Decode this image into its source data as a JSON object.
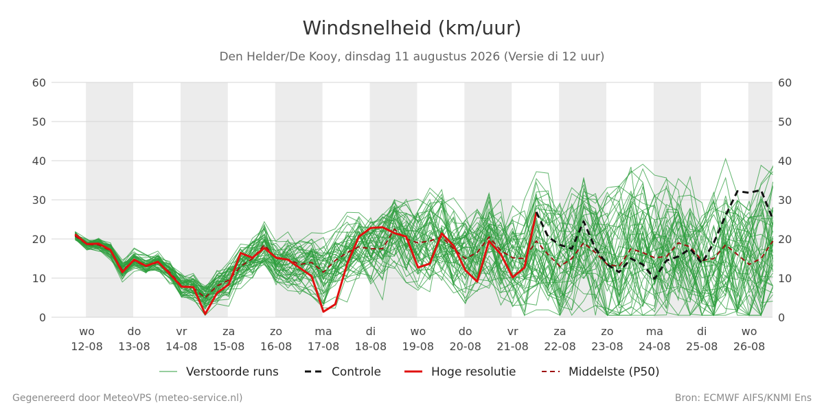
{
  "title": "Windsnelheid (km/uur)",
  "subtitle": "Den Helder/De Kooy, dinsdag 11 augustus 2026 (Versie di 12 uur)",
  "footer_left": "Gegenereerd door MeteoVPS (meteo-service.nl)",
  "footer_right": "Bron: ECMWF AIFS/KNMI Ens",
  "colors": {
    "ensemble": "#2e9e3e",
    "control": "#111111",
    "high_res": "#e0100f",
    "median": "#9e1010",
    "shade": "#ececec",
    "grid": "#d6d6d6"
  },
  "chart_data": {
    "type": "line",
    "ylim": [
      0,
      60
    ],
    "yticks": [
      0,
      10,
      20,
      30,
      40,
      50,
      60
    ],
    "x_unit": "day offset from 12-08 00:00",
    "xlim": [
      -0.75,
      14.5
    ],
    "day_ticks": [
      {
        "day": "wo",
        "date": "12-08"
      },
      {
        "day": "do",
        "date": "13-08"
      },
      {
        "day": "vr",
        "date": "14-08"
      },
      {
        "day": "za",
        "date": "15-08"
      },
      {
        "day": "zo",
        "date": "16-08"
      },
      {
        "day": "ma",
        "date": "17-08"
      },
      {
        "day": "di",
        "date": "18-08"
      },
      {
        "day": "wo",
        "date": "19-08"
      },
      {
        "day": "do",
        "date": "20-08"
      },
      {
        "day": "vr",
        "date": "21-08"
      },
      {
        "day": "za",
        "date": "22-08"
      },
      {
        "day": "zo",
        "date": "23-08"
      },
      {
        "day": "ma",
        "date": "24-08"
      },
      {
        "day": "di",
        "date": "25-08"
      },
      {
        "day": "wo",
        "date": "26-08"
      }
    ],
    "legend": [
      {
        "key": "ensemble",
        "label": "Verstoorde runs"
      },
      {
        "key": "control",
        "label": "Controle"
      },
      {
        "key": "high_res",
        "label": "Hoge resolutie"
      },
      {
        "key": "median",
        "label": "Middelste (P50)"
      }
    ],
    "series": [
      {
        "name": "Hoge resolutie",
        "key": "high_res",
        "x": [
          -0.25,
          0,
          0.25,
          0.5,
          0.75,
          1,
          1.25,
          1.5,
          1.75,
          2,
          2.25,
          2.5,
          2.75,
          3,
          3.25,
          3.5,
          3.75,
          4,
          4.25,
          4.5,
          4.75,
          5,
          5.25,
          5.5,
          5.75,
          6,
          6.25,
          6.5,
          6.75,
          7,
          7.25,
          7.5,
          7.75,
          8,
          8.25,
          8.5,
          8.75,
          9,
          9.25,
          9.5
        ],
        "y": [
          21.2,
          18.7,
          18.8,
          17.2,
          11.5,
          14.7,
          13.1,
          14.2,
          11.1,
          7.8,
          7.7,
          0.8,
          6.2,
          8.4,
          16.4,
          15.2,
          17.7,
          15.2,
          14.7,
          12.6,
          10.5,
          1.4,
          3.3,
          13.6,
          20.6,
          22.8,
          23.0,
          21.5,
          20.6,
          12.7,
          13.7,
          21.4,
          18.3,
          12.0,
          9.1,
          19.5,
          16.1,
          10.2,
          12.7,
          26.9
        ]
      },
      {
        "name": "Controle",
        "key": "control",
        "x": [
          9.5,
          9.75,
          10,
          10.25,
          10.5,
          10.75,
          11,
          11.25,
          11.5,
          11.75,
          12,
          12.25,
          12.5,
          12.75,
          13,
          13.25,
          13.5,
          13.75,
          14,
          14.25,
          14.5
        ],
        "y": [
          26.9,
          20.5,
          18.5,
          17.5,
          24.5,
          17.5,
          13.5,
          11.5,
          15.0,
          13.5,
          9.8,
          14.5,
          15.5,
          17.5,
          13.8,
          19.0,
          26.0,
          32.2,
          31.8,
          32.5,
          25.0
        ]
      },
      {
        "name": "Middelste (P50)",
        "key": "median",
        "x": [
          -0.25,
          0,
          0.25,
          0.5,
          0.75,
          1,
          1.25,
          1.5,
          1.75,
          2,
          2.25,
          2.5,
          2.75,
          3,
          3.25,
          3.5,
          3.75,
          4,
          4.25,
          4.5,
          4.75,
          5,
          5.25,
          5.5,
          5.75,
          6,
          6.25,
          6.5,
          6.75,
          7,
          7.25,
          7.5,
          7.75,
          8,
          8.25,
          8.5,
          8.75,
          9,
          9.25,
          9.5,
          9.75,
          10,
          10.25,
          10.5,
          10.75,
          11,
          11.25,
          11.5,
          11.75,
          12,
          12.25,
          12.5,
          12.75,
          13,
          13.25,
          13.5,
          13.75,
          14,
          14.25,
          14.5
        ],
        "y": [
          20.8,
          18.6,
          18.5,
          17.0,
          12.0,
          14.5,
          13.0,
          14.0,
          11.5,
          8.0,
          7.5,
          5.0,
          8.0,
          9.5,
          13.0,
          15.0,
          18.5,
          15.0,
          14.8,
          13.5,
          14.0,
          11.5,
          14.5,
          16.5,
          18.0,
          17.5,
          17.5,
          22.5,
          20.0,
          19.0,
          19.5,
          20.5,
          17.5,
          15.0,
          16.5,
          20.5,
          17.0,
          15.2,
          15.0,
          19.5,
          16.0,
          13.0,
          15.0,
          19.0,
          16.5,
          13.5,
          13.0,
          17.5,
          16.5,
          15.2,
          15.5,
          19.0,
          18.0,
          14.5,
          15.0,
          18.5,
          16.0,
          13.5,
          15.0,
          19.5
        ]
      }
    ],
    "ensemble": {
      "name": "Verstoorde runs",
      "member_count": 50,
      "x_start": -0.25,
      "x_step": 0.25,
      "members": []
    }
  }
}
